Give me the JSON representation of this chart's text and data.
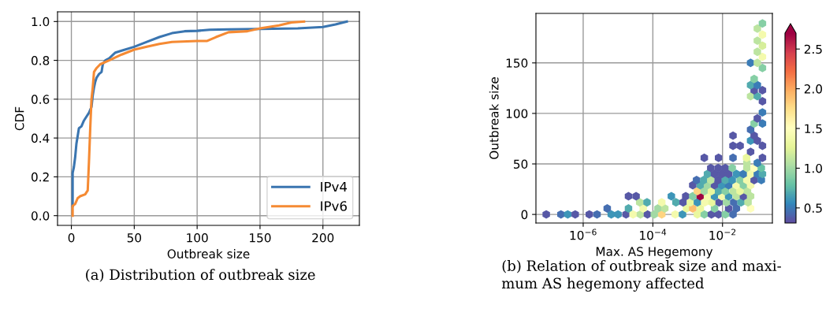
{
  "chart_data": [
    {
      "type": "line",
      "xlabel": "Outbreak size",
      "ylabel": "CDF",
      "xlim": [
        -11,
        229
      ],
      "ylim": [
        -0.05,
        1.05
      ],
      "xticks": [
        0,
        50,
        100,
        150,
        200
      ],
      "yticks": [
        {
          "value": 0,
          "label": "0.0"
        },
        {
          "value": 0.2,
          "label": "0.2"
        },
        {
          "value": 0.4,
          "label": "0.4"
        },
        {
          "value": 0.6,
          "label": "0.6"
        },
        {
          "value": 0.8,
          "label": "0.8"
        },
        {
          "value": 1,
          "label": "1.0"
        }
      ],
      "grid": true,
      "legend": "lower right",
      "annotations": [
        "(a) Distribution of outbreak size"
      ],
      "series": [
        {
          "name": "IPv4",
          "color": "#3a75b0",
          "x": [
            1,
            1,
            2,
            3,
            4,
            5,
            6,
            8,
            10,
            12,
            14,
            16,
            17,
            18,
            19,
            20,
            22,
            24,
            25,
            27,
            30,
            35,
            40,
            50,
            60,
            70,
            80,
            90,
            100,
            110,
            125,
            150,
            180,
            200,
            210,
            219
          ],
          "values": [
            0.05,
            0.22,
            0.25,
            0.3,
            0.37,
            0.41,
            0.45,
            0.46,
            0.49,
            0.51,
            0.53,
            0.56,
            0.62,
            0.66,
            0.69,
            0.71,
            0.73,
            0.74,
            0.78,
            0.8,
            0.81,
            0.84,
            0.85,
            0.87,
            0.895,
            0.92,
            0.94,
            0.95,
            0.952,
            0.958,
            0.96,
            0.962,
            0.965,
            0.972,
            0.985,
            1.0
          ]
        },
        {
          "name": "IPv6",
          "color": "#f58a33",
          "x": [
            1,
            1,
            3,
            5,
            7,
            11,
            13,
            14,
            15,
            16,
            17,
            18,
            20,
            23,
            30,
            40,
            50,
            60,
            70,
            80,
            100,
            108,
            115,
            125,
            140,
            150,
            165,
            175,
            185
          ],
          "values": [
            0.0,
            0.05,
            0.06,
            0.09,
            0.1,
            0.11,
            0.13,
            0.28,
            0.45,
            0.6,
            0.66,
            0.74,
            0.76,
            0.78,
            0.8,
            0.83,
            0.855,
            0.87,
            0.885,
            0.895,
            0.9,
            0.9,
            0.92,
            0.945,
            0.95,
            0.965,
            0.98,
            0.995,
            1.0
          ]
        }
      ]
    },
    {
      "type": "scatter",
      "xlabel": "Max. AS Hegemony",
      "ylabel": "Outbreak size",
      "log": "x",
      "xlim": [
        4.4e-08,
        0.27
      ],
      "ylim": [
        -8.5,
        199
      ],
      "xticks": [
        {
          "value": 1e-06,
          "label": "10$^{−6}$"
        },
        {
          "value": 0.0001,
          "label": "10$^{−4}$"
        },
        {
          "value": 0.01,
          "label": "10$^{−2}$"
        }
      ],
      "yticks": [
        0,
        50,
        100,
        150
      ],
      "grid": true,
      "clim": [
        0.31,
        2.7
      ],
      "cticks": [
        0.5,
        {
          "value": 1,
          "label": "1.0"
        },
        1.5,
        {
          "value": 2,
          "label": "2.0"
        },
        2.5
      ],
      "annotations": [
        "(b) Relation of outbreak size and maxi-\nmum AS hegemony affected"
      ],
      "x": [
        8.7e-08,
        2.3e-07,
        3.6e-07,
        5.9e-07,
        1.5e-06,
        2.5e-06,
        6.4e-06,
        1e-05,
        1.7e-05,
        2.7e-05,
        4.4e-05,
        7e-05,
        0.00011,
        0.00018,
        0.00044,
        0.00071,
        0.0019,
        0.003,
        0.0048,
        0.0077,
        0.012,
        0.02,
        4.9e-06,
        2e-05,
        5.3e-05,
        0.00014,
        0.00022,
        0.00093,
        0.0014,
        0.0023,
        0.0059,
        0.015,
        0.025,
        0.064,
        4.2e-05,
        6.8e-05,
        0.00018,
        0.00046,
        0.00074,
        0.0012,
        0.0019,
        0.0031,
        0.005,
        0.008,
        0.013,
        0.021,
        0.034,
        0.054,
        2e-05,
        3.3e-05,
        0.00034,
        0.00088,
        0.0014,
        0.0023,
        0.0037,
        0.0059,
        0.0095,
        0.015,
        0.025,
        0.04,
        0.064,
        0.0019,
        0.003,
        0.0048,
        0.0077,
        0.012,
        0.02,
        0.032,
        0.052,
        0.0014,
        0.0023,
        0.0037,
        0.0059,
        0.0095,
        0.015,
        0.025,
        0.04,
        0.064,
        0.0018,
        0.0029,
        0.0046,
        0.0075,
        0.012,
        0.019,
        0.032,
        0.05,
        0.081,
        0.13,
        0.0037,
        0.0059,
        0.0095,
        0.015,
        0.025,
        0.04,
        0.064,
        0.1,
        0.14,
        0.0046,
        0.0075,
        0.012,
        0.019,
        0.05,
        0.081,
        0.13,
        0.05,
        0.1,
        0.003,
        0.0077,
        0.02,
        0.049,
        0.14,
        0.064,
        0.02,
        0.032,
        0.14,
        0.064,
        0.1,
        0.02,
        0.081,
        0.064,
        0.081,
        0.14,
        0.1,
        0.14,
        0.14,
        0.064,
        0.1,
        0.081,
        0.14,
        0.064,
        0.1,
        0.081,
        0.14,
        0.064,
        0.1,
        0.14,
        0.1,
        0.14,
        0.1,
        0.14,
        0.1,
        0.14
      ],
      "values": [
        0,
        0,
        0,
        0,
        0,
        0,
        0,
        0,
        0,
        0,
        0,
        0,
        0,
        0,
        0,
        0,
        0,
        0,
        0,
        0,
        0,
        0,
        6,
        6,
        6,
        6,
        6,
        6,
        6,
        6,
        6,
        6,
        6,
        6,
        12,
        12,
        12,
        12,
        12,
        12,
        12,
        12,
        12,
        12,
        12,
        12,
        12,
        12,
        18,
        18,
        18,
        18,
        18,
        18,
        18,
        18,
        18,
        18,
        18,
        18,
        18,
        23,
        23,
        23,
        23,
        23,
        23,
        23,
        23,
        29,
        29,
        29,
        29,
        29,
        29,
        29,
        29,
        29,
        34,
        34,
        34,
        34,
        34,
        34,
        34,
        34,
        34,
        34,
        40,
        40,
        40,
        40,
        40,
        40,
        40,
        40,
        40,
        46,
        46,
        46,
        46,
        46,
        46,
        46,
        51,
        51,
        56,
        56,
        56,
        56,
        56,
        62,
        68,
        68,
        68,
        73,
        73,
        78,
        78,
        84,
        90,
        90,
        95,
        101,
        112,
        117,
        117,
        123,
        123,
        128,
        128,
        134,
        145,
        150,
        150,
        156,
        161,
        167,
        172,
        178,
        184,
        189
      ],
      "cvalues": [
        0.35,
        0.45,
        0.6,
        0.35,
        0.35,
        0.45,
        0.6,
        0.6,
        0.35,
        1.4,
        1.1,
        0.35,
        1.0,
        1.8,
        1.4,
        0.6,
        1.3,
        0.9,
        0.35,
        0.35,
        0.9,
        0.45,
        0.45,
        0.7,
        1.4,
        1.0,
        1.1,
        1.3,
        1.9,
        1.3,
        0.9,
        0.35,
        0.45,
        1.5,
        1.1,
        0.7,
        1.4,
        0.7,
        0.35,
        1.3,
        0.6,
        1.4,
        1.3,
        0.35,
        1.0,
        0.45,
        0.7,
        1.1,
        0.35,
        0.35,
        0.6,
        0.35,
        0.9,
        2.7,
        1.4,
        0.6,
        1.4,
        0.6,
        1.1,
        0.35,
        1.1,
        1.8,
        1.0,
        1.3,
        0.7,
        0.9,
        1.1,
        1.3,
        1.1,
        0.35,
        0.7,
        1.0,
        0.35,
        0.6,
        0.5,
        1.4,
        0.9,
        1.4,
        0.45,
        0.7,
        1.1,
        0.35,
        0.7,
        0.6,
        0.9,
        1.4,
        0.35,
        0.5,
        0.7,
        0.35,
        0.35,
        0.35,
        0.6,
        0.5,
        1.4,
        0.5,
        0.7,
        0.35,
        0.35,
        0.35,
        0.9,
        1.1,
        1.5,
        0.8,
        1.1,
        0.5,
        0.35,
        0.35,
        0.45,
        1.3,
        0.35,
        0.35,
        0.35,
        0.35,
        0.35,
        0.6,
        0.35,
        0.35,
        0.35,
        0.45,
        0.9,
        0.5,
        0.35,
        0.5,
        0.35,
        1.1,
        0.7,
        0.35,
        0.35,
        0.7,
        0.5,
        0.9,
        0.9,
        0.5,
        1.1,
        1.4,
        1.1,
        1.2,
        1.1,
        1.4,
        1.1,
        0.9
      ]
    }
  ]
}
